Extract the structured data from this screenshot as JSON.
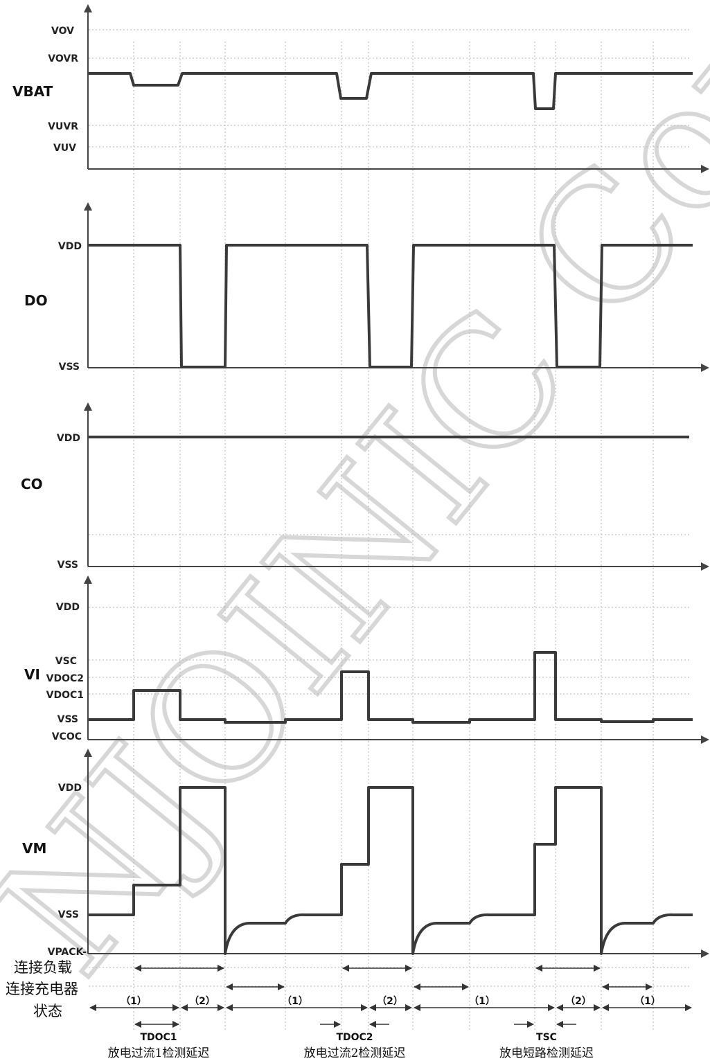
{
  "watermark": "NJOINIC Corp",
  "signals": {
    "vbat": "VBAT",
    "do": "DO",
    "co": "CO",
    "vi": "VI",
    "vm": "VM"
  },
  "levels": {
    "vbat": {
      "vov": "VOV",
      "vovr": "VOVR",
      "vuvr": "VUVR",
      "vuv": "VUV"
    },
    "do": {
      "vdd": "VDD",
      "vss": "VSS"
    },
    "co": {
      "vdd": "VDD",
      "vss": "VSS"
    },
    "vi": {
      "vdd": "VDD",
      "vsc": "VSC",
      "vdoc2": "VDOC2",
      "vdoc1": "VDOC1",
      "vss": "VSS",
      "vcoc": "VCOC"
    },
    "vm": {
      "vdd": "VDD",
      "vss": "VSS",
      "vpack": "VPACK-"
    }
  },
  "state_rows": {
    "load": "连接负载",
    "charger": "连接充电器",
    "state": "状态"
  },
  "phases": [
    "（1）",
    "（2）",
    "（1）",
    "（2）",
    "（1）",
    "（2）",
    "（1）"
  ],
  "delays": [
    {
      "symbol": "TDOC1",
      "caption": "放电过流1检测延迟"
    },
    {
      "symbol": "TDOC2",
      "caption": "放电过流2检测延迟"
    },
    {
      "symbol": "TSC",
      "caption": "放电短路检测延迟"
    }
  ]
}
